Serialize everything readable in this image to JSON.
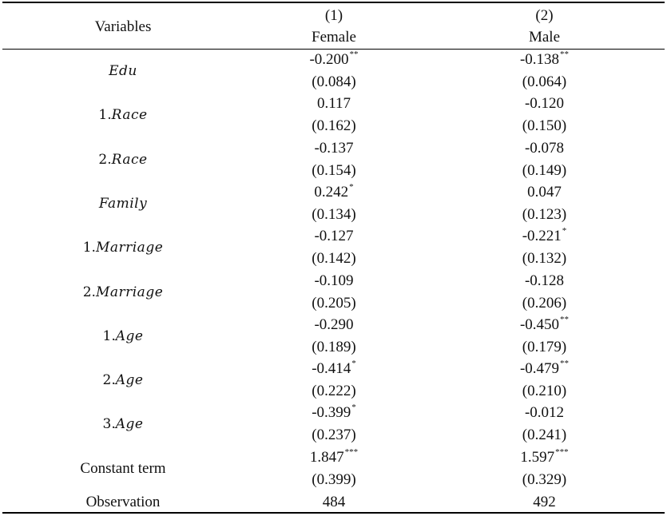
{
  "header": {
    "variables_label": "Variables",
    "columns": [
      {
        "number": "(1)",
        "label": "Female"
      },
      {
        "number": "(2)",
        "label": "Male"
      }
    ]
  },
  "rows": [
    {
      "prefix": "",
      "name": "Edu",
      "italic": true,
      "female": {
        "coef": "-0.200",
        "stars": "**",
        "se": "(0.084)"
      },
      "male": {
        "coef": "-0.138",
        "stars": "**",
        "se": "(0.064)"
      }
    },
    {
      "prefix": "1.",
      "name": "Race",
      "italic": true,
      "female": {
        "coef": "0.117",
        "stars": "",
        "se": "(0.162)"
      },
      "male": {
        "coef": "-0.120",
        "stars": "",
        "se": "(0.150)"
      }
    },
    {
      "prefix": "2.",
      "name": "Race",
      "italic": true,
      "female": {
        "coef": "-0.137",
        "stars": "",
        "se": "(0.154)"
      },
      "male": {
        "coef": "-0.078",
        "stars": "",
        "se": "(0.149)"
      }
    },
    {
      "prefix": "",
      "name": "Family",
      "italic": true,
      "female": {
        "coef": "0.242",
        "stars": "*",
        "se": "(0.134)"
      },
      "male": {
        "coef": "0.047",
        "stars": "",
        "se": "(0.123)"
      }
    },
    {
      "prefix": "1.",
      "name": "Marriage",
      "italic": true,
      "female": {
        "coef": "-0.127",
        "stars": "",
        "se": "(0.142)"
      },
      "male": {
        "coef": "-0.221",
        "stars": "*",
        "se": "(0.132)"
      }
    },
    {
      "prefix": "2.",
      "name": "Marriage",
      "italic": true,
      "female": {
        "coef": "-0.109",
        "stars": "",
        "se": "(0.205)"
      },
      "male": {
        "coef": "-0.128",
        "stars": "",
        "se": "(0.206)"
      }
    },
    {
      "prefix": "1.",
      "name": "Age",
      "italic": true,
      "female": {
        "coef": "-0.290",
        "stars": "",
        "se": "(0.189)"
      },
      "male": {
        "coef": "-0.450",
        "stars": "**",
        "se": "(0.179)"
      }
    },
    {
      "prefix": "2.",
      "name": "Age",
      "italic": true,
      "female": {
        "coef": "-0.414",
        "stars": "*",
        "se": "(0.222)"
      },
      "male": {
        "coef": "-0.479",
        "stars": "**",
        "se": "(0.210)"
      }
    },
    {
      "prefix": "3.",
      "name": "Age",
      "italic": true,
      "female": {
        "coef": "-0.399",
        "stars": "*",
        "se": "(0.237)"
      },
      "male": {
        "coef": "-0.012",
        "stars": "",
        "se": "(0.241)"
      }
    },
    {
      "prefix": "",
      "name": "Constant term",
      "italic": false,
      "female": {
        "coef": "1.847",
        "stars": "***",
        "se": "(0.399)"
      },
      "male": {
        "coef": "1.597",
        "stars": "***",
        "se": "(0.329)"
      }
    }
  ],
  "observation": {
    "label": "Observation",
    "female": "484",
    "male": "492"
  }
}
